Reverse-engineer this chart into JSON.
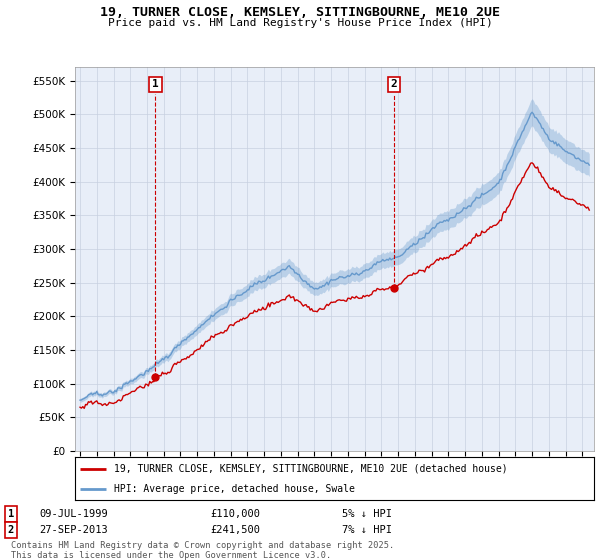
{
  "title_line1": "19, TURNER CLOSE, KEMSLEY, SITTINGBOURNE, ME10 2UE",
  "title_line2": "Price paid vs. HM Land Registry's House Price Index (HPI)",
  "legend_line1": "19, TURNER CLOSE, KEMSLEY, SITTINGBOURNE, ME10 2UE (detached house)",
  "legend_line2": "HPI: Average price, detached house, Swale",
  "annotation1_date": "09-JUL-1999",
  "annotation1_price": "£110,000",
  "annotation1_note": "5% ↓ HPI",
  "annotation2_date": "27-SEP-2013",
  "annotation2_price": "£241,500",
  "annotation2_note": "7% ↓ HPI",
  "footnote": "Contains HM Land Registry data © Crown copyright and database right 2025.\nThis data is licensed under the Open Government Licence v3.0.",
  "price_color": "#cc0000",
  "hpi_color": "#6699cc",
  "background_color": "#ffffff",
  "chart_bg_color": "#e8eef8",
  "grid_color": "#c8d0e0",
  "ylim_min": 0,
  "ylim_max": 570000,
  "sale1_year": 1999.52,
  "sale1_price": 110000,
  "sale2_year": 2013.74,
  "sale2_price": 241500
}
